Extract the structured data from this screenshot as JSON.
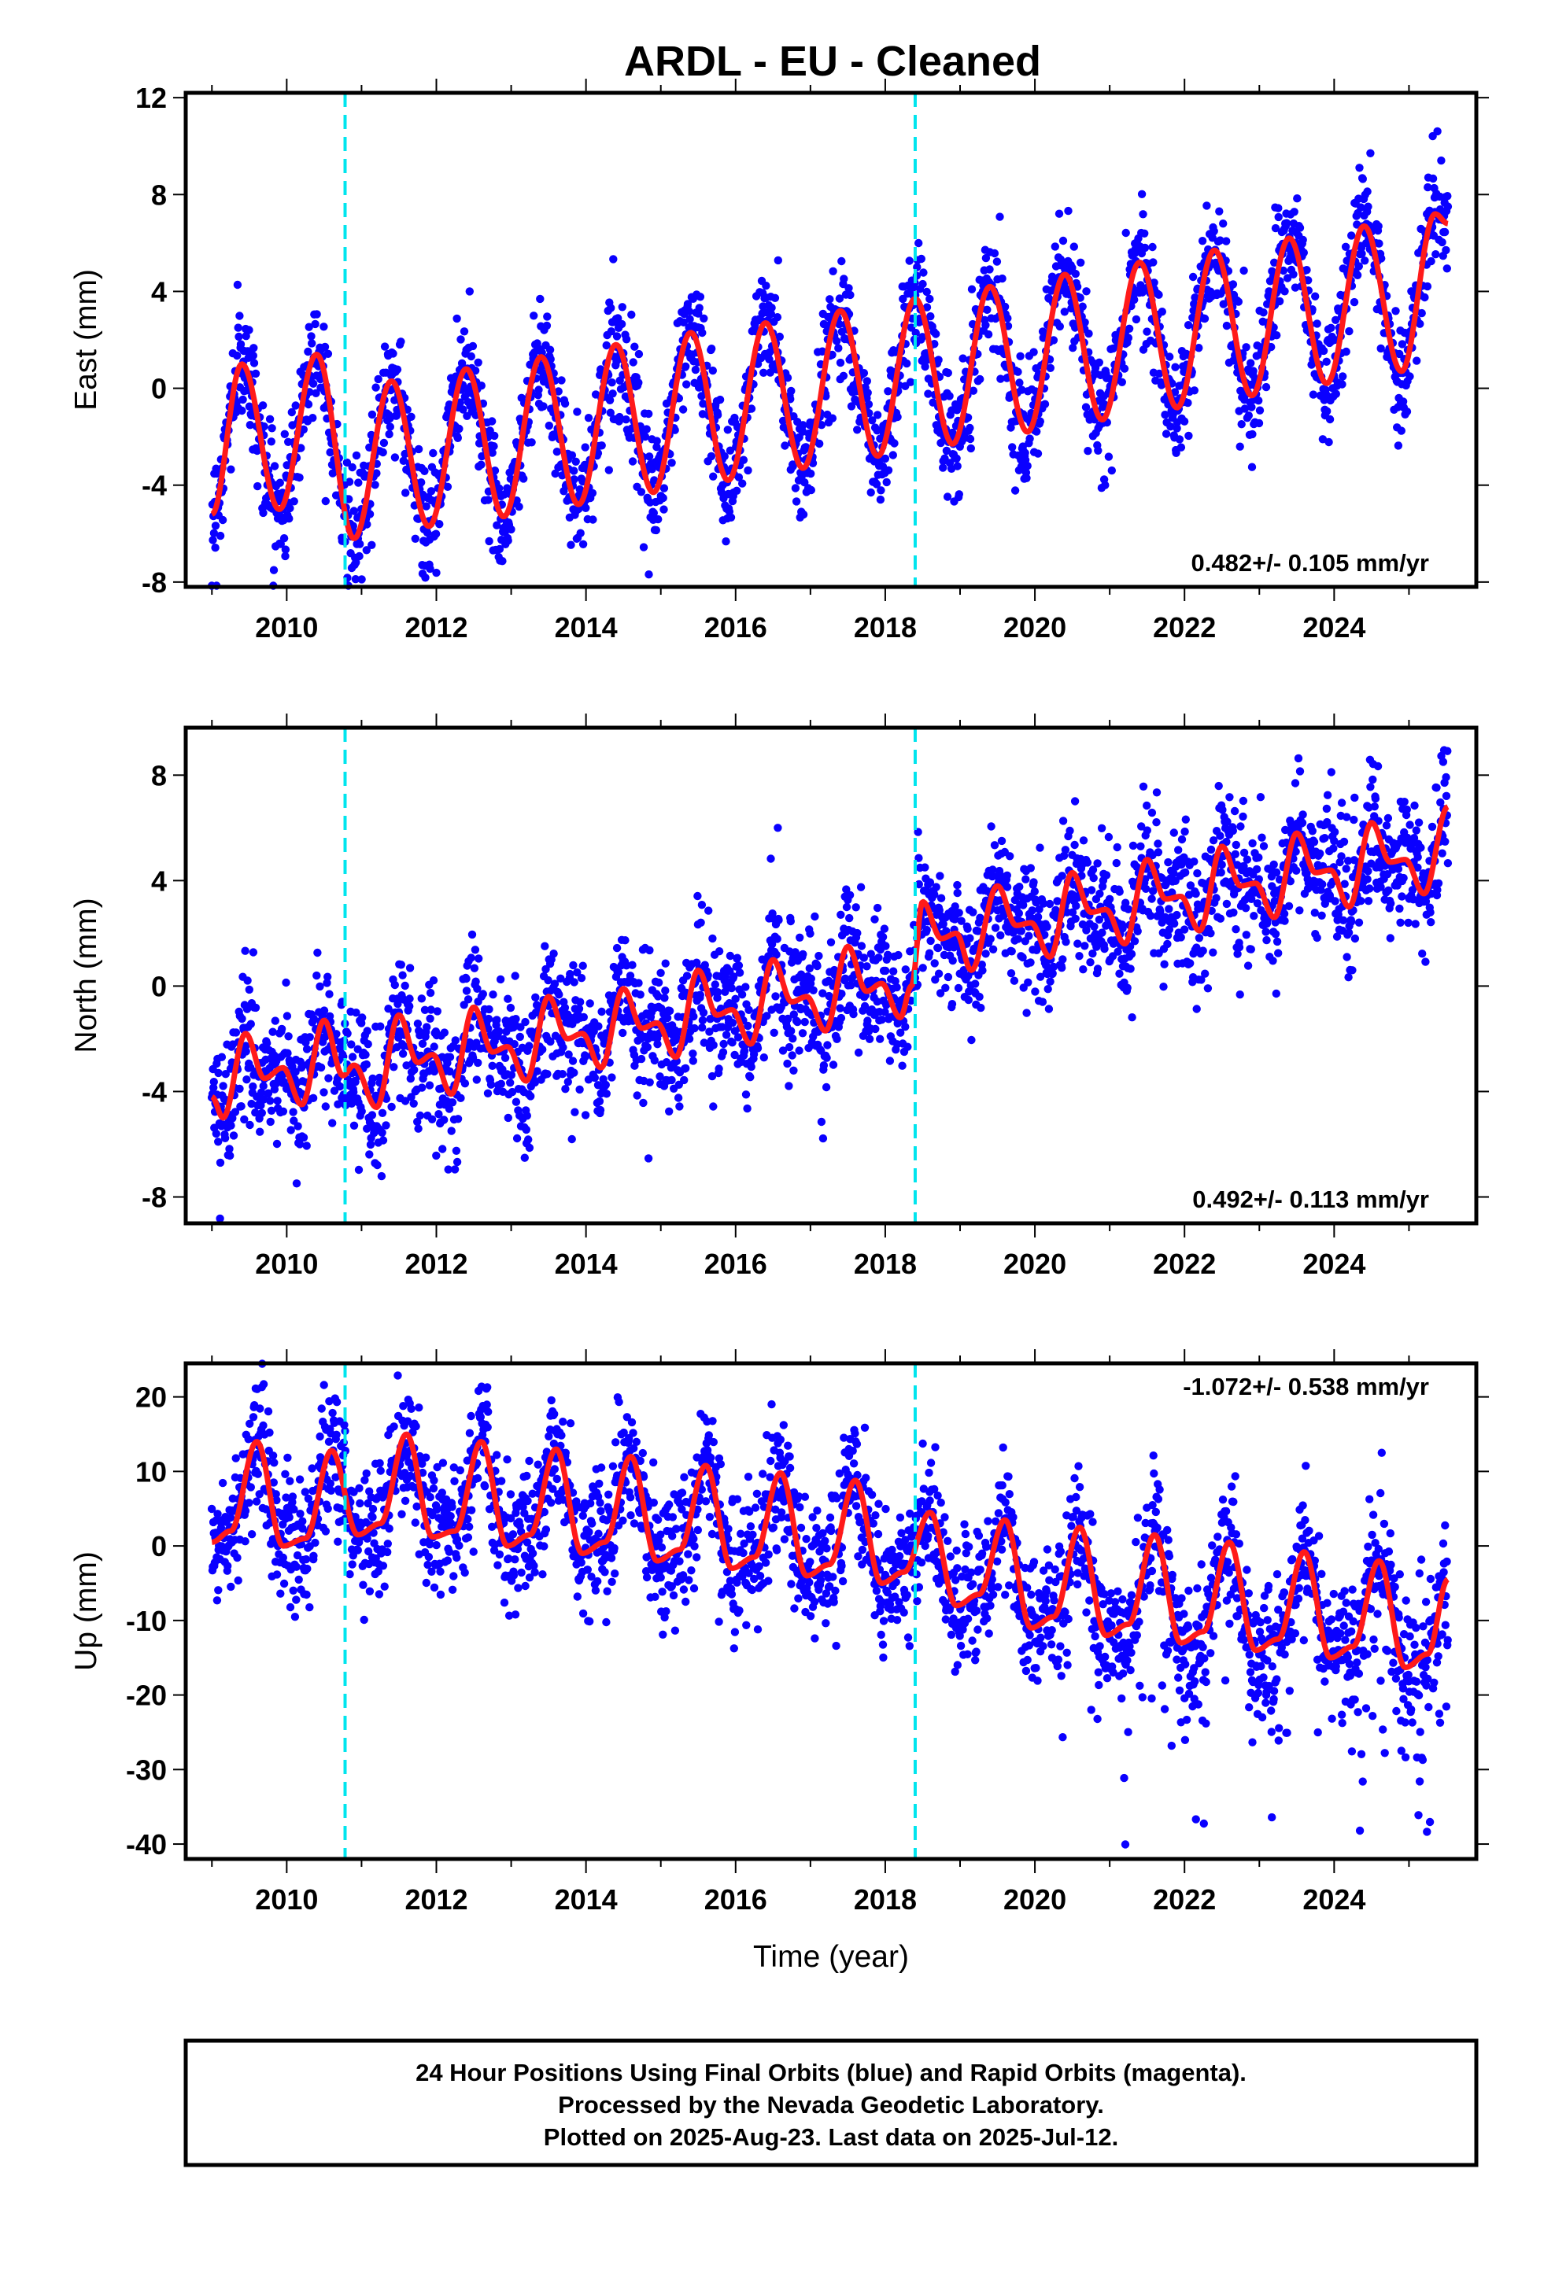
{
  "title": "ARDL  - EU - Cleaned",
  "colors": {
    "points": "#0a00ff",
    "fit": "#ff1a1a",
    "markers": "#00e5ee",
    "frame": "#000000"
  },
  "footer": {
    "line1": "24 Hour Positions Using Final Orbits (blue) and Rapid Orbits (magenta).",
    "line2": "Processed by the Nevada Geodetic Laboratory.",
    "line3": "Plotted on 2025-Aug-23. Last data on 2025-Jul-12."
  },
  "chart_data": [
    {
      "type": "scatter",
      "component": "east",
      "ylabel": "East (mm)",
      "xlabel": "",
      "xlim": [
        2008.65,
        2025.9
      ],
      "ylim": [
        -8.2,
        12.2
      ],
      "x_ticks": [
        "2010",
        "2012",
        "2014",
        "2016",
        "2018",
        "2020",
        "2022",
        "2024"
      ],
      "y_ticks": [
        "12",
        "8",
        "4",
        "0",
        "-4",
        "-8"
      ],
      "rate_label": "0.482+/- 0.105 mm/yr",
      "rate_position": "bottom-right",
      "vertical_markers": [
        2010.78,
        2018.4
      ],
      "data_span": [
        2009.0,
        2025.52
      ],
      "scatter_sd": 1.2,
      "fit_points": [
        [
          2009.0,
          -5.2
        ],
        [
          2009.4,
          1.0
        ],
        [
          2009.9,
          -5.0
        ],
        [
          2010.4,
          1.4
        ],
        [
          2010.9,
          -6.2
        ],
        [
          2011.4,
          0.3
        ],
        [
          2011.9,
          -5.7
        ],
        [
          2012.4,
          0.8
        ],
        [
          2012.9,
          -5.3
        ],
        [
          2013.4,
          1.3
        ],
        [
          2013.9,
          -4.8
        ],
        [
          2014.4,
          1.8
        ],
        [
          2014.9,
          -4.3
        ],
        [
          2015.4,
          2.3
        ],
        [
          2015.9,
          -3.8
        ],
        [
          2016.4,
          2.7
        ],
        [
          2016.9,
          -3.3
        ],
        [
          2017.4,
          3.2
        ],
        [
          2017.9,
          -2.8
        ],
        [
          2018.4,
          3.7
        ],
        [
          2018.9,
          -2.3
        ],
        [
          2019.4,
          4.2
        ],
        [
          2019.9,
          -1.8
        ],
        [
          2020.4,
          4.7
        ],
        [
          2020.9,
          -1.3
        ],
        [
          2021.4,
          5.2
        ],
        [
          2021.9,
          -0.8
        ],
        [
          2022.4,
          5.7
        ],
        [
          2022.9,
          -0.3
        ],
        [
          2023.4,
          6.2
        ],
        [
          2023.9,
          0.2
        ],
        [
          2024.4,
          6.7
        ],
        [
          2024.9,
          0.7
        ],
        [
          2025.35,
          7.2
        ],
        [
          2025.52,
          6.8
        ]
      ]
    },
    {
      "type": "scatter",
      "component": "north",
      "ylabel": "North (mm)",
      "xlabel": "",
      "xlim": [
        2008.65,
        2025.9
      ],
      "ylim": [
        -9.0,
        9.8
      ],
      "x_ticks": [
        "2010",
        "2012",
        "2014",
        "2016",
        "2018",
        "2020",
        "2022",
        "2024"
      ],
      "y_ticks": [
        "8",
        "4",
        "0",
        "-4",
        "-8"
      ],
      "rate_label": "0.492+/- 0.113 mm/yr",
      "rate_position": "bottom-right",
      "vertical_markers": [
        2010.78,
        2018.4
      ],
      "data_span": [
        2009.0,
        2025.52
      ],
      "scatter_sd": 1.3,
      "fit_points": [
        [
          2009.0,
          -4.2
        ],
        [
          2009.15,
          -5.0
        ],
        [
          2009.45,
          -1.8
        ],
        [
          2009.7,
          -3.5
        ],
        [
          2009.95,
          -3.1
        ],
        [
          2010.2,
          -4.5
        ],
        [
          2010.5,
          -1.3
        ],
        [
          2010.75,
          -3.4
        ],
        [
          2010.9,
          -3.0
        ],
        [
          2011.2,
          -4.6
        ],
        [
          2011.5,
          -1.1
        ],
        [
          2011.75,
          -2.9
        ],
        [
          2011.95,
          -2.6
        ],
        [
          2012.2,
          -4.1
        ],
        [
          2012.5,
          -0.8
        ],
        [
          2012.75,
          -2.5
        ],
        [
          2012.95,
          -2.3
        ],
        [
          2013.2,
          -3.6
        ],
        [
          2013.5,
          -0.4
        ],
        [
          2013.75,
          -2.0
        ],
        [
          2013.95,
          -1.8
        ],
        [
          2014.2,
          -3.1
        ],
        [
          2014.5,
          -0.1
        ],
        [
          2014.75,
          -1.6
        ],
        [
          2014.95,
          -1.4
        ],
        [
          2015.2,
          -2.7
        ],
        [
          2015.5,
          0.6
        ],
        [
          2015.75,
          -1.1
        ],
        [
          2015.95,
          -0.9
        ],
        [
          2016.2,
          -2.2
        ],
        [
          2016.5,
          1.0
        ],
        [
          2016.75,
          -0.6
        ],
        [
          2016.95,
          -0.4
        ],
        [
          2017.2,
          -1.7
        ],
        [
          2017.5,
          1.5
        ],
        [
          2017.75,
          -0.2
        ],
        [
          2017.95,
          0.1
        ],
        [
          2018.2,
          -1.2
        ],
        [
          2018.35,
          0.0
        ],
        [
          2018.5,
          3.2
        ],
        [
          2018.75,
          1.8
        ],
        [
          2018.95,
          2.0
        ],
        [
          2019.15,
          0.6
        ],
        [
          2019.5,
          3.8
        ],
        [
          2019.75,
          2.3
        ],
        [
          2019.95,
          2.4
        ],
        [
          2020.2,
          1.1
        ],
        [
          2020.5,
          4.3
        ],
        [
          2020.75,
          2.8
        ],
        [
          2020.95,
          2.9
        ],
        [
          2021.2,
          1.6
        ],
        [
          2021.5,
          4.8
        ],
        [
          2021.75,
          3.3
        ],
        [
          2021.95,
          3.4
        ],
        [
          2022.2,
          2.1
        ],
        [
          2022.5,
          5.3
        ],
        [
          2022.75,
          3.8
        ],
        [
          2022.95,
          3.9
        ],
        [
          2023.2,
          2.6
        ],
        [
          2023.5,
          5.8
        ],
        [
          2023.75,
          4.3
        ],
        [
          2023.95,
          4.4
        ],
        [
          2024.2,
          3.0
        ],
        [
          2024.5,
          6.2
        ],
        [
          2024.75,
          4.7
        ],
        [
          2024.95,
          4.8
        ],
        [
          2025.2,
          3.5
        ],
        [
          2025.52,
          6.8
        ]
      ]
    },
    {
      "type": "scatter",
      "component": "up",
      "ylabel": "Up (mm)",
      "xlabel": "Time (year)",
      "xlim": [
        2008.65,
        2025.9
      ],
      "ylim": [
        -42.0,
        24.5
      ],
      "x_ticks": [
        "2010",
        "2012",
        "2014",
        "2016",
        "2018",
        "2020",
        "2022",
        "2024"
      ],
      "y_ticks": [
        "20",
        "10",
        "0",
        "-10",
        "-20",
        "-30",
        "-40"
      ],
      "rate_label": "-1.072+/- 0.538 mm/yr",
      "rate_position": "top-right",
      "vertical_markers": [
        2010.78,
        2018.4
      ],
      "data_span": [
        2009.0,
        2025.52
      ],
      "scatter_sd": 4.5,
      "fit_points": [
        [
          2009.0,
          0.5
        ],
        [
          2009.25,
          2.0
        ],
        [
          2009.6,
          14.0
        ],
        [
          2009.95,
          0.0
        ],
        [
          2010.25,
          1.0
        ],
        [
          2010.6,
          12.8
        ],
        [
          2010.95,
          1.5
        ],
        [
          2011.25,
          3.0
        ],
        [
          2011.6,
          15.0
        ],
        [
          2011.95,
          1.2
        ],
        [
          2012.25,
          2.0
        ],
        [
          2012.6,
          14.0
        ],
        [
          2012.95,
          0.0
        ],
        [
          2013.25,
          1.5
        ],
        [
          2013.6,
          13.0
        ],
        [
          2013.95,
          -1.0
        ],
        [
          2014.25,
          0.5
        ],
        [
          2014.6,
          12.0
        ],
        [
          2014.95,
          -2.0
        ],
        [
          2015.25,
          -0.5
        ],
        [
          2015.6,
          10.8
        ],
        [
          2015.95,
          -3.0
        ],
        [
          2016.25,
          -1.5
        ],
        [
          2016.6,
          9.8
        ],
        [
          2016.95,
          -4.0
        ],
        [
          2017.25,
          -2.5
        ],
        [
          2017.6,
          8.8
        ],
        [
          2017.95,
          -5.0
        ],
        [
          2018.25,
          -3.5
        ],
        [
          2018.6,
          4.5
        ],
        [
          2018.95,
          -8.0
        ],
        [
          2019.25,
          -6.5
        ],
        [
          2019.6,
          3.5
        ],
        [
          2019.95,
          -11.0
        ],
        [
          2020.25,
          -9.5
        ],
        [
          2020.6,
          2.5
        ],
        [
          2020.95,
          -12.0
        ],
        [
          2021.25,
          -10.5
        ],
        [
          2021.6,
          1.5
        ],
        [
          2021.95,
          -13.0
        ],
        [
          2022.25,
          -11.5
        ],
        [
          2022.6,
          0.5
        ],
        [
          2022.95,
          -14.0
        ],
        [
          2023.25,
          -12.5
        ],
        [
          2023.6,
          -0.8
        ],
        [
          2023.95,
          -15.0
        ],
        [
          2024.25,
          -13.5
        ],
        [
          2024.6,
          -2.0
        ],
        [
          2024.95,
          -16.3
        ],
        [
          2025.25,
          -14.5
        ],
        [
          2025.52,
          -4.5
        ]
      ]
    }
  ]
}
